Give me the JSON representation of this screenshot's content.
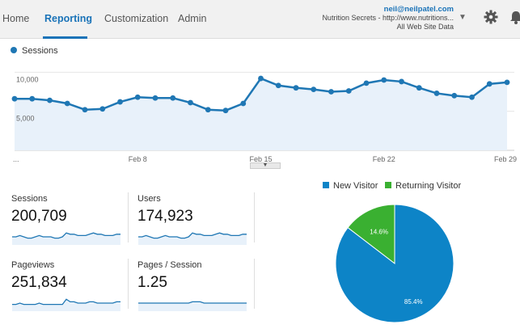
{
  "nav": {
    "items": [
      {
        "label": "Home"
      },
      {
        "label": "Reporting"
      },
      {
        "label": "Customization"
      },
      {
        "label": "Admin"
      }
    ],
    "active_index": 1
  },
  "account": {
    "email": "neil@neilpatel.com",
    "property": "Nutrition Secrets - http://www.nutritions...",
    "view": "All Web Site Data"
  },
  "icons": {
    "account_dropdown": "caret-down-icon",
    "settings": "gear-icon",
    "notifications": "bell-icon"
  },
  "colors": {
    "accent": "#1a73b8",
    "series": "#1f77b4",
    "area_fill": "#e8f1fa",
    "pie_new": "#0d84c7",
    "pie_returning": "#3ab031"
  },
  "chart_data": [
    {
      "type": "area",
      "series": [
        {
          "name": "Sessions",
          "values": [
            6600,
            6600,
            6400,
            6000,
            5200,
            5300,
            6200,
            6800,
            6700,
            6700,
            6100,
            5200,
            5100,
            6000,
            9200,
            8300,
            8000,
            7800,
            7500,
            7600,
            8600,
            9000,
            8800,
            8000,
            7300,
            7000,
            6800,
            8500,
            8700
          ]
        }
      ],
      "x_tick_labels": [
        "...",
        "Feb 8",
        "Feb 15",
        "Feb 22",
        "Feb 29"
      ],
      "y_tick_labels": [
        "10,000",
        "5,000"
      ],
      "ylim": [
        0,
        12000
      ],
      "grid": "horizontal"
    },
    {
      "type": "pie",
      "categories": [
        "New Visitor",
        "Returning Visitor"
      ],
      "values": [
        85.4,
        14.6
      ],
      "labels": [
        "85.4%",
        "14.6%"
      ]
    }
  ],
  "metrics": [
    {
      "label": "Sessions",
      "value": "200,709",
      "spark": [
        5,
        5,
        6,
        5,
        4,
        4,
        5,
        6,
        5,
        5,
        5,
        4,
        4,
        5,
        8,
        7,
        7,
        6,
        6,
        6,
        7,
        8,
        7,
        7,
        6,
        6,
        6,
        7,
        7
      ]
    },
    {
      "label": "Users",
      "value": "174,923",
      "spark": [
        5,
        5,
        6,
        5,
        4,
        4,
        5,
        6,
        5,
        5,
        5,
        4,
        4,
        5,
        8,
        7,
        7,
        6,
        6,
        6,
        7,
        8,
        7,
        7,
        6,
        6,
        6,
        7,
        7
      ]
    },
    {
      "label": "Pageviews",
      "value": "251,834",
      "spark": [
        4,
        4,
        5,
        4,
        4,
        4,
        4,
        5,
        4,
        4,
        4,
        4,
        4,
        4,
        8,
        6,
        6,
        5,
        5,
        5,
        6,
        6,
        5,
        5,
        5,
        5,
        5,
        6,
        6
      ]
    },
    {
      "label": "Pages / Session",
      "value": "1.25",
      "spark": [
        5,
        5,
        5,
        5,
        5,
        5,
        5,
        5,
        5,
        5,
        5,
        5,
        5,
        5,
        6,
        6,
        6,
        5,
        5,
        5,
        5,
        5,
        5,
        5,
        5,
        5,
        5,
        5,
        5
      ]
    }
  ]
}
